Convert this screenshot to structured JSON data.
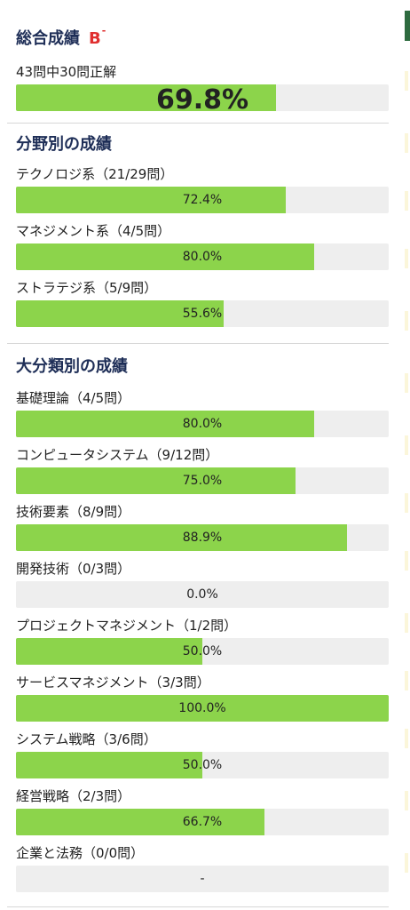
{
  "overall": {
    "title": "総合成績",
    "grade": "B",
    "grade_suffix": "-",
    "summary": "43問中30問正解",
    "percent": 69.8,
    "percent_label": "69.8%"
  },
  "field": {
    "title": "分野別の成績",
    "items": [
      {
        "label": "テクノロジ系（21/29問）",
        "percent": 72.4,
        "text": "72.4%"
      },
      {
        "label": "マネジメント系（4/5問）",
        "percent": 80.0,
        "text": "80.0%"
      },
      {
        "label": "ストラテジ系（5/9問）",
        "percent": 55.6,
        "text": "55.6%"
      }
    ]
  },
  "category": {
    "title": "大分類別の成績",
    "items": [
      {
        "label": "基礎理論（4/5問）",
        "percent": 80.0,
        "text": "80.0%"
      },
      {
        "label": "コンピュータシステム（9/12問）",
        "percent": 75.0,
        "text": "75.0%"
      },
      {
        "label": "技術要素（8/9問）",
        "percent": 88.9,
        "text": "88.9%"
      },
      {
        "label": "開発技術（0/3問）",
        "percent": 0.0,
        "text": "0.0%"
      },
      {
        "label": "プロジェクトマネジメント（1/2問）",
        "percent": 50.0,
        "text": "50.0%"
      },
      {
        "label": "サービスマネジメント（3/3問）",
        "percent": 100.0,
        "text": "100.0%"
      },
      {
        "label": "システム戦略（3/6問）",
        "percent": 50.0,
        "text": "50.0%"
      },
      {
        "label": "経営戦略（2/3問）",
        "percent": 66.7,
        "text": "66.7%"
      },
      {
        "label": "企業と法務（0/0問）",
        "percent": 0,
        "text": "-"
      }
    ]
  },
  "colors": {
    "bar_fill": "#8cd44b",
    "bar_track": "#eeeeee",
    "title": "#1e2e57",
    "grade": "#e02f2f"
  }
}
